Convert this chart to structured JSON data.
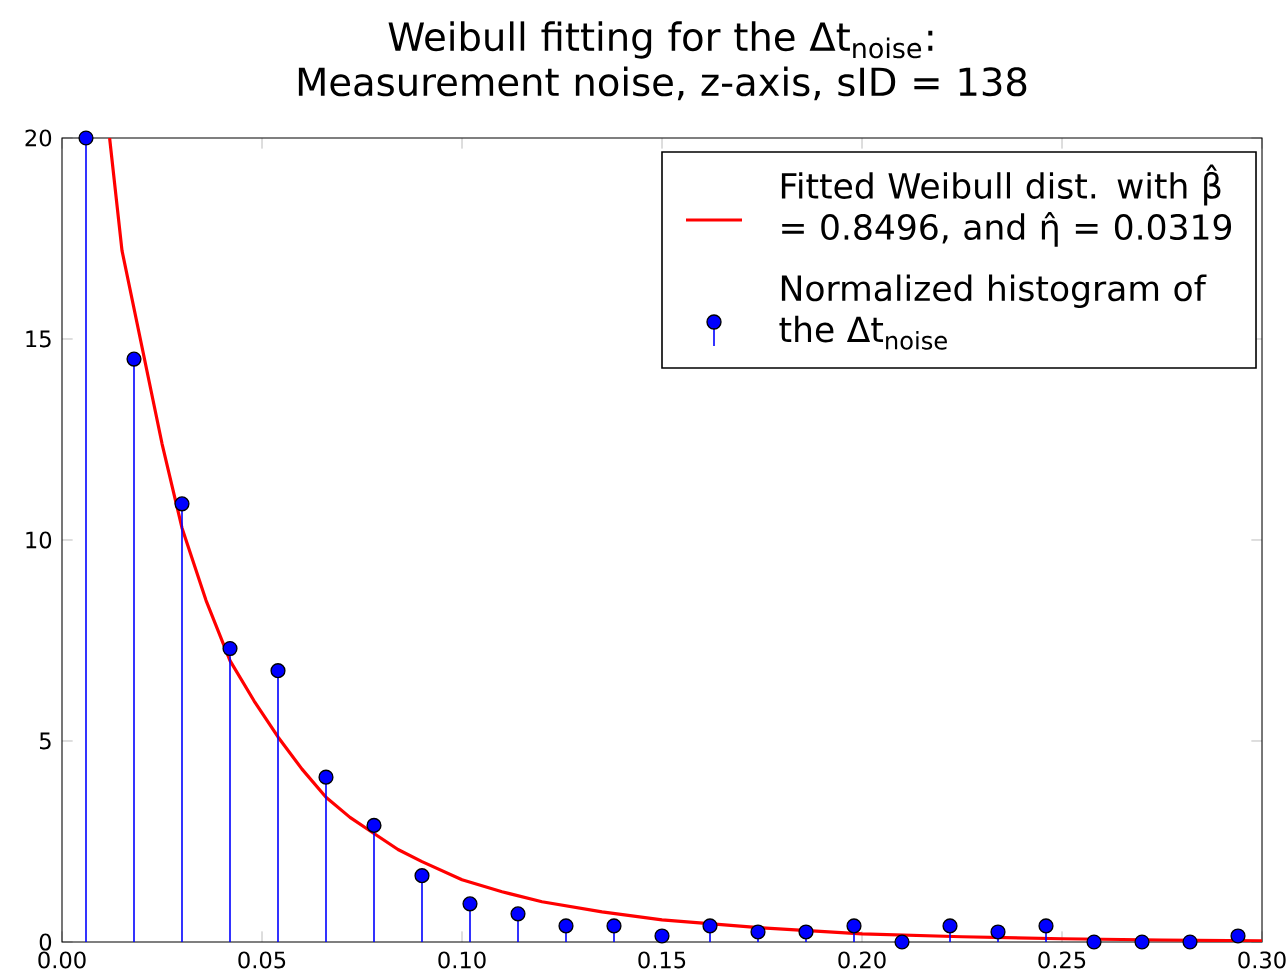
{
  "chart_data": {
    "type": "lollipop",
    "title": "Weibull fitting for the Δt$_{noise}$: Measurement noise, z-axis, sID = 138",
    "xlim": [
      0,
      0.3
    ],
    "ylim": [
      0,
      20
    ],
    "xticks": [
      {
        "value": 0,
        "label": "0.00"
      },
      {
        "value": 0.05,
        "label": "0.05"
      },
      {
        "value": 0.1,
        "label": "0.10"
      },
      {
        "value": 0.15,
        "label": "0.15"
      },
      {
        "value": 0.2,
        "label": "0.20"
      },
      {
        "value": 0.25,
        "label": "0.25"
      },
      {
        "value": 0.3,
        "label": "0.30"
      }
    ],
    "yticks": [
      0,
      5,
      10,
      15,
      20
    ],
    "legend": "top right",
    "series": [
      {
        "name": "Fitted Weibull dist. with β̂ = 0.8496, and η̂ = 0.0319",
        "type": "line",
        "color": "#ff0000",
        "marker": "none",
        "line_style": "solid",
        "x": [
          0.0119,
          0.015,
          0.02,
          0.025,
          0.03,
          0.036,
          0.042,
          0.048,
          0.054,
          0.06,
          0.066,
          0.072,
          0.078,
          0.084,
          0.09,
          0.1,
          0.11,
          0.12,
          0.135,
          0.15,
          0.175,
          0.2,
          0.225,
          0.25,
          0.275,
          0.3
        ],
        "values": [
          20,
          17.2,
          14.8,
          12.4,
          10.3,
          8.5,
          7.0,
          6.0,
          5.1,
          4.3,
          3.6,
          3.1,
          2.7,
          2.3,
          2.0,
          1.55,
          1.25,
          1.0,
          0.75,
          0.55,
          0.35,
          0.2,
          0.13,
          0.08,
          0.05,
          0.03
        ]
      },
      {
        "name": "Normalized histogram of the Δt$_{noise}$",
        "color": "#0000ff",
        "marker": "circle",
        "x": [
          0.006,
          0.018,
          0.03,
          0.042,
          0.054,
          0.066,
          0.078,
          0.09,
          0.102,
          0.114,
          0.126,
          0.138,
          0.15,
          0.162,
          0.174,
          0.186,
          0.198,
          0.21,
          0.222,
          0.234,
          0.246,
          0.258,
          0.27,
          0.282,
          0.294
        ],
        "values": [
          20,
          14.5,
          10.9,
          7.3,
          6.75,
          4.1,
          2.9,
          1.65,
          0.95,
          0.7,
          0.4,
          0.4,
          0.15,
          0.4,
          0.25,
          0.25,
          0.4,
          0,
          0.4,
          0.25,
          0.4,
          0,
          0,
          0,
          0.15
        ]
      }
    ]
  }
}
